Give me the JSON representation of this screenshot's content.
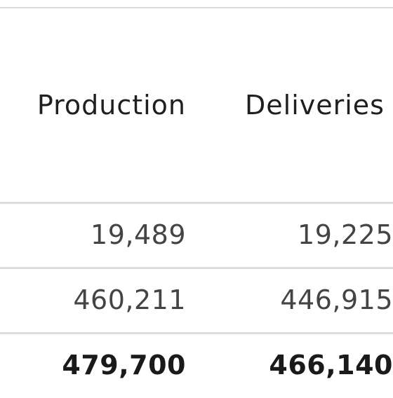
{
  "table": {
    "headers": {
      "production": "Production",
      "deliveries": "Deliveries"
    },
    "rows": [
      {
        "production": "19,489",
        "deliveries": "19,225"
      },
      {
        "production": "460,211",
        "deliveries": "446,915"
      }
    ],
    "total": {
      "production": "479,700",
      "deliveries": "466,140"
    }
  }
}
